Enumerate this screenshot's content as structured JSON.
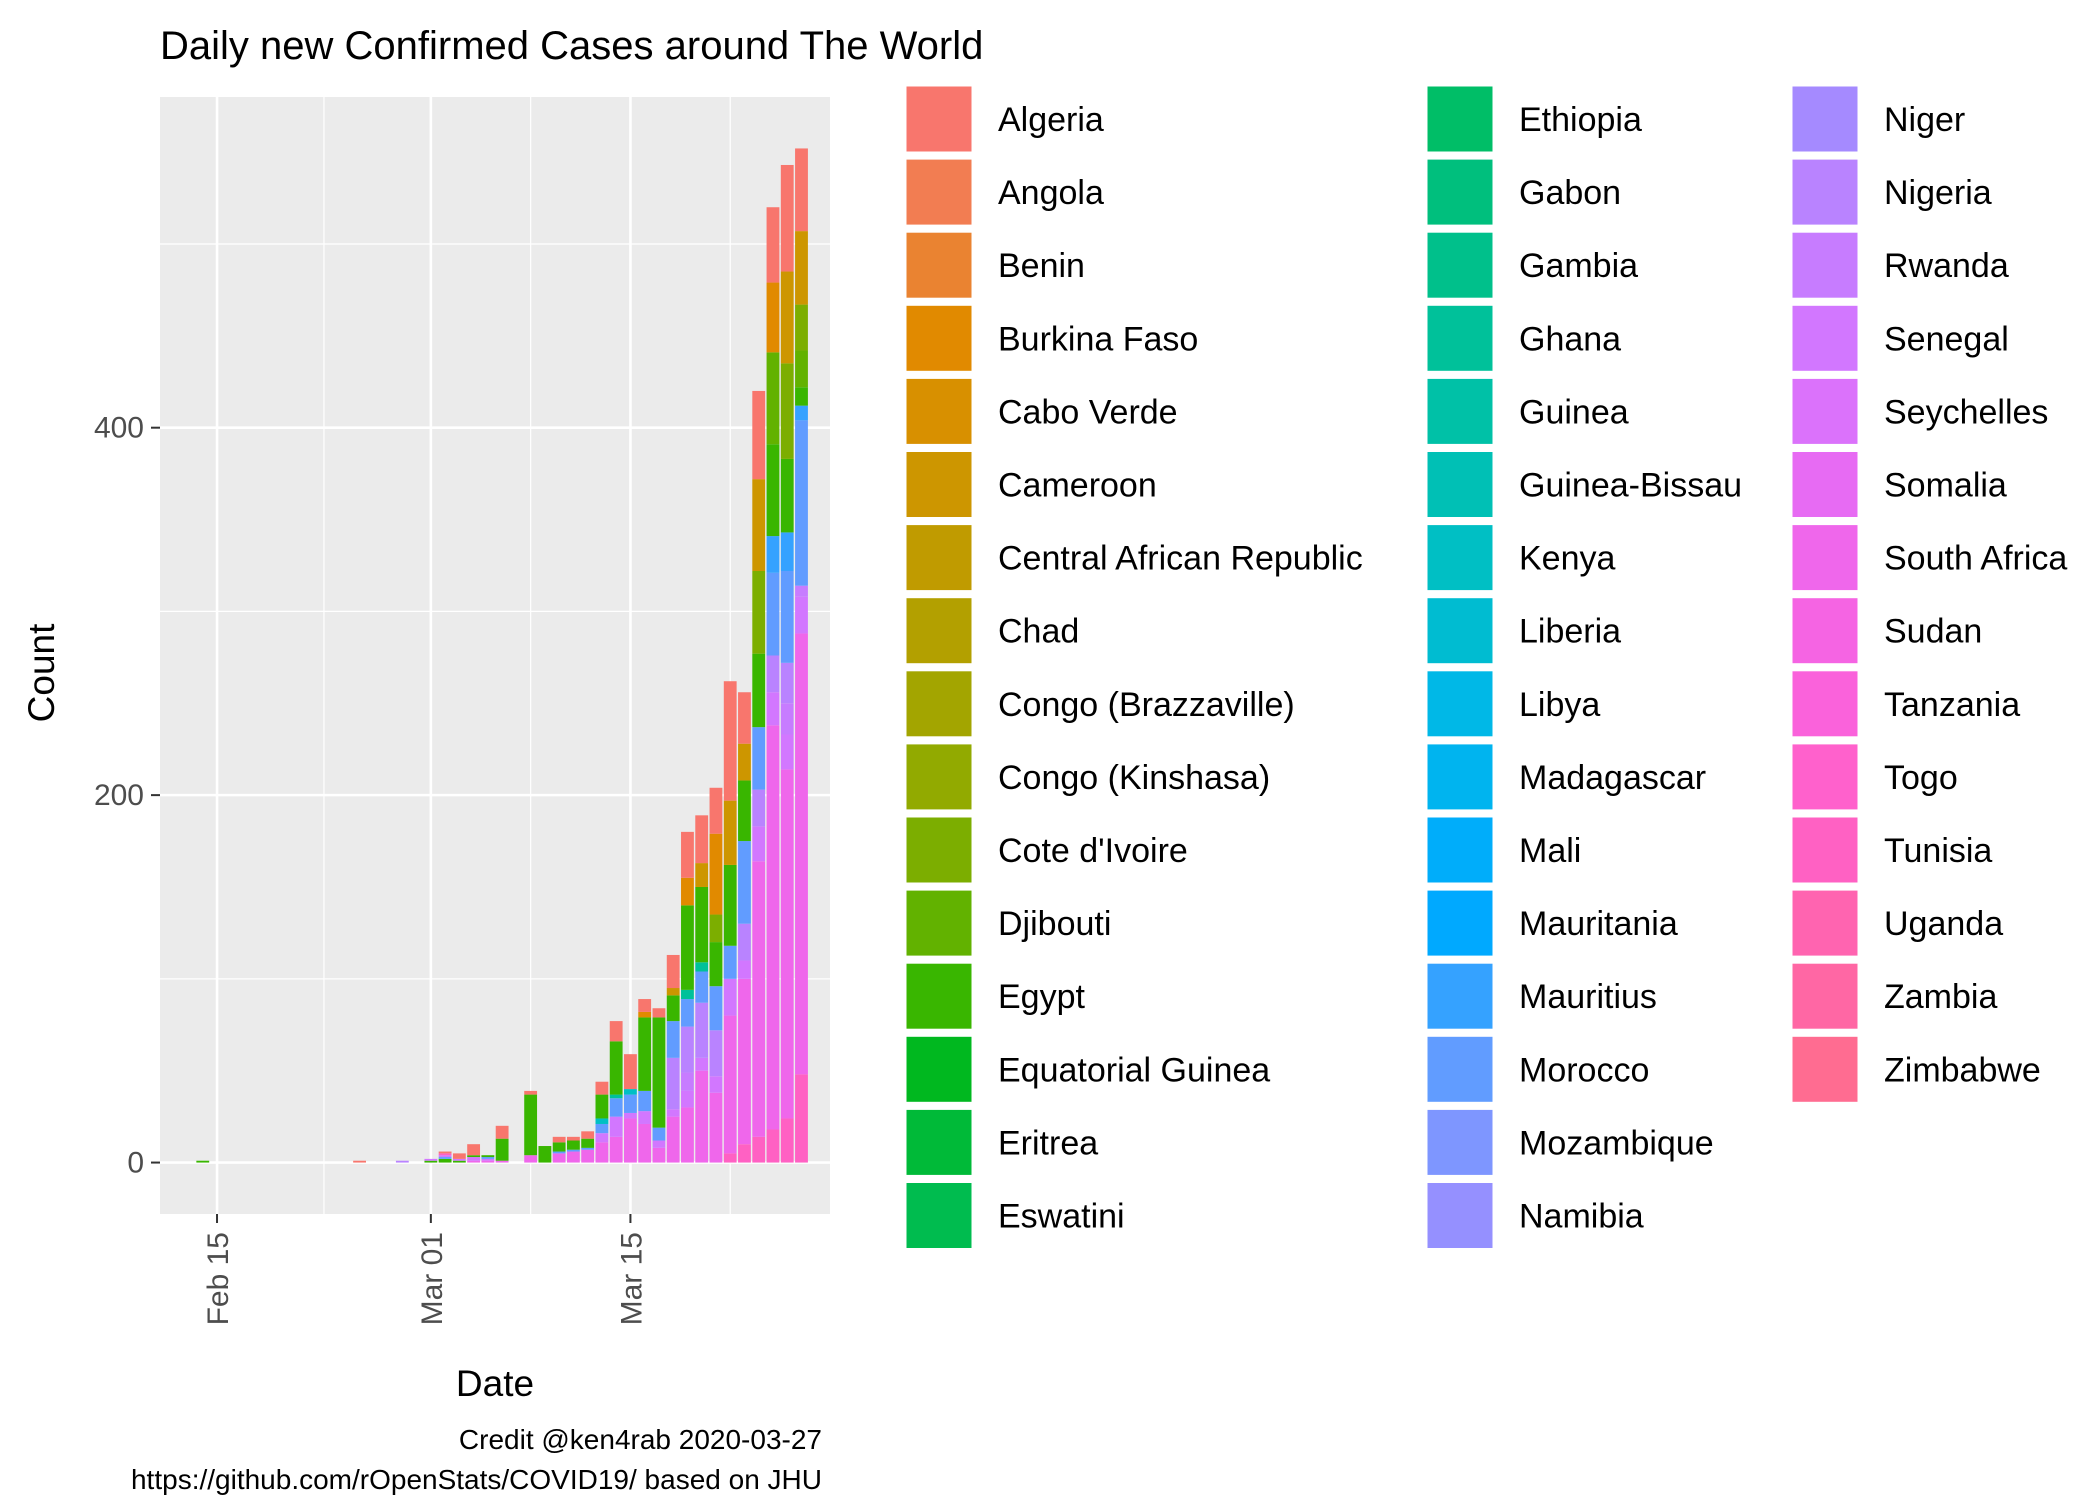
{
  "chart_data": {
    "type": "bar",
    "stacked": true,
    "title": "Daily new Confirmed Cases around The World",
    "xlabel": "Date",
    "ylabel": "Count",
    "x_tick_labels": [
      "Feb 15",
      "Mar 01",
      "Mar 15"
    ],
    "y_tick_labels": [
      "0",
      "200",
      "400"
    ],
    "ylim": [
      -28,
      580
    ],
    "x_range_days": [
      "2020-02-11",
      "2020-03-29"
    ],
    "grid": true,
    "legend_placement": "right",
    "caption": [
      "Credit @ken4rab 2020-03-27",
      "https://github.com/rOpenStats/COVID19/ based on JHU"
    ],
    "legend": [
      {
        "name": "Algeria",
        "color": "#F8766D"
      },
      {
        "name": "Angola",
        "color": "#F27D52"
      },
      {
        "name": "Benin",
        "color": "#EA8331"
      },
      {
        "name": "Burkina Faso",
        "color": "#E18A00"
      },
      {
        "name": "Cabo Verde",
        "color": "#D89000"
      },
      {
        "name": "Cameroon",
        "color": "#CD9600"
      },
      {
        "name": "Central African Republic",
        "color": "#C09B00"
      },
      {
        "name": "Chad",
        "color": "#B3A000"
      },
      {
        "name": "Congo (Brazzaville)",
        "color": "#A3A500"
      },
      {
        "name": "Congo (Kinshasa)",
        "color": "#92AA00"
      },
      {
        "name": "Cote d'Ivoire",
        "color": "#7CAE00"
      },
      {
        "name": "Djibouti",
        "color": "#62B200"
      },
      {
        "name": "Egypt",
        "color": "#39B600"
      },
      {
        "name": "Equatorial Guinea",
        "color": "#00B81F"
      },
      {
        "name": "Eritrea",
        "color": "#00BA38"
      },
      {
        "name": "Eswatini",
        "color": "#00BC4F"
      },
      {
        "name": "Ethiopia",
        "color": "#00BE67"
      },
      {
        "name": "Gabon",
        "color": "#00BF7D"
      },
      {
        "name": "Gambia",
        "color": "#00C08B"
      },
      {
        "name": "Ghana",
        "color": "#00C19A"
      },
      {
        "name": "Guinea",
        "color": "#00C1A7"
      },
      {
        "name": "Guinea-Bissau",
        "color": "#00C0B5"
      },
      {
        "name": "Kenya",
        "color": "#00BFC4"
      },
      {
        "name": "Liberia",
        "color": "#00BCD1"
      },
      {
        "name": "Libya",
        "color": "#00B8E7"
      },
      {
        "name": "Madagascar",
        "color": "#00B4EF"
      },
      {
        "name": "Mali",
        "color": "#00ADFA"
      },
      {
        "name": "Mauritania",
        "color": "#00A9FF"
      },
      {
        "name": "Mauritius",
        "color": "#35A2FF"
      },
      {
        "name": "Morocco",
        "color": "#619CFF"
      },
      {
        "name": "Mozambique",
        "color": "#7E96FF"
      },
      {
        "name": "Namibia",
        "color": "#9590FF"
      },
      {
        "name": "Niger",
        "color": "#A58AFF"
      },
      {
        "name": "Nigeria",
        "color": "#B983FF"
      },
      {
        "name": "Rwanda",
        "color": "#C77CFF"
      },
      {
        "name": "Senegal",
        "color": "#D277FF"
      },
      {
        "name": "Seychelles",
        "color": "#DB72FB"
      },
      {
        "name": "Somalia",
        "color": "#E76BF3"
      },
      {
        "name": "South Africa",
        "color": "#EF67EB"
      },
      {
        "name": "Sudan",
        "color": "#F564E3"
      },
      {
        "name": "Tanzania",
        "color": "#FA62DB"
      },
      {
        "name": "Togo",
        "color": "#FF61CC"
      },
      {
        "name": "Tunisia",
        "color": "#FF61C3"
      },
      {
        "name": "Uganda",
        "color": "#FF64B0"
      },
      {
        "name": "Zambia",
        "color": "#FF67A4"
      },
      {
        "name": "Zimbabwe",
        "color": "#FF6C91"
      }
    ],
    "bars": [
      {
        "date": "2020-02-14",
        "segments": [
          [
            "Egypt",
            1
          ]
        ]
      },
      {
        "date": "2020-02-25",
        "segments": [
          [
            "Algeria",
            1
          ]
        ]
      },
      {
        "date": "2020-02-28",
        "segments": [
          [
            "Nigeria",
            1
          ]
        ]
      },
      {
        "date": "2020-03-01",
        "segments": [
          [
            "Egypt",
            1
          ],
          [
            "Senegal",
            1
          ]
        ]
      },
      {
        "date": "2020-03-02",
        "segments": [
          [
            "Egypt",
            2
          ],
          [
            "Morocco",
            1
          ],
          [
            "Senegal",
            1
          ],
          [
            "Tunisia",
            1
          ],
          [
            "Algeria",
            1
          ]
        ]
      },
      {
        "date": "2020-03-03",
        "segments": [
          [
            "Egypt",
            1
          ],
          [
            "Senegal",
            1
          ],
          [
            "Algeria",
            3
          ]
        ]
      },
      {
        "date": "2020-03-04",
        "segments": [
          [
            "South Africa",
            1
          ],
          [
            "Senegal",
            2
          ],
          [
            "Egypt",
            1
          ],
          [
            "Algeria",
            6
          ]
        ]
      },
      {
        "date": "2020-03-05",
        "segments": [
          [
            "South Africa",
            1
          ],
          [
            "Senegal",
            1
          ],
          [
            "Morocco",
            1
          ],
          [
            "Egypt",
            1
          ]
        ]
      },
      {
        "date": "2020-03-06",
        "segments": [
          [
            "South Africa",
            1
          ],
          [
            "Egypt",
            12
          ],
          [
            "Algeria",
            7
          ]
        ]
      },
      {
        "date": "2020-03-08",
        "segments": [
          [
            "South Africa",
            4
          ],
          [
            "Egypt",
            33
          ],
          [
            "Algeria",
            2
          ]
        ]
      },
      {
        "date": "2020-03-09",
        "segments": [
          [
            "Egypt",
            9
          ]
        ]
      },
      {
        "date": "2020-03-10",
        "segments": [
          [
            "South Africa",
            5
          ],
          [
            "Morocco",
            1
          ],
          [
            "Egypt",
            5
          ],
          [
            "Algeria",
            3
          ]
        ]
      },
      {
        "date": "2020-03-11",
        "segments": [
          [
            "South Africa",
            6
          ],
          [
            "Morocco",
            1
          ],
          [
            "Egypt",
            5
          ],
          [
            "Algeria",
            2
          ]
        ]
      },
      {
        "date": "2020-03-12",
        "segments": [
          [
            "South Africa",
            7
          ],
          [
            "Morocco",
            1
          ],
          [
            "Egypt",
            5
          ],
          [
            "Algeria",
            4
          ]
        ]
      },
      {
        "date": "2020-03-13",
        "segments": [
          [
            "South Africa",
            11
          ],
          [
            "Senegal",
            5
          ],
          [
            "Morocco",
            5
          ],
          [
            "Kenya",
            3
          ],
          [
            "Egypt",
            13
          ],
          [
            "Algeria",
            7
          ]
        ]
      },
      {
        "date": "2020-03-14",
        "segments": [
          [
            "South Africa",
            14
          ],
          [
            "Senegal",
            11
          ],
          [
            "Morocco",
            10
          ],
          [
            "Ghana",
            2
          ],
          [
            "Egypt",
            29
          ],
          [
            "Algeria",
            11
          ]
        ]
      },
      {
        "date": "2020-03-15",
        "segments": [
          [
            "South Africa",
            24
          ],
          [
            "Senegal",
            3
          ],
          [
            "Morocco",
            10
          ],
          [
            "Kenya",
            3
          ],
          [
            "Egypt",
            0
          ],
          [
            "Algeria",
            19
          ]
        ]
      },
      {
        "date": "2020-03-16",
        "segments": [
          [
            "South Africa",
            21
          ],
          [
            "Senegal",
            7
          ],
          [
            "Morocco",
            11
          ],
          [
            "Egypt",
            40
          ],
          [
            "Burkina Faso",
            3
          ],
          [
            "Algeria",
            7
          ]
        ]
      },
      {
        "date": "2020-03-17",
        "segments": [
          [
            "South Africa",
            8
          ],
          [
            "Senegal",
            4
          ],
          [
            "Morocco",
            7
          ],
          [
            "Egypt",
            60
          ],
          [
            "Algeria",
            5
          ]
        ]
      },
      {
        "date": "2020-03-18",
        "segments": [
          [
            "South Africa",
            25
          ],
          [
            "Senegal",
            4
          ],
          [
            "Nigeria",
            28
          ],
          [
            "Morocco",
            20
          ],
          [
            "Egypt",
            14
          ],
          [
            "Cameroon",
            4
          ],
          [
            "Algeria",
            18
          ]
        ]
      },
      {
        "date": "2020-03-19",
        "segments": [
          [
            "South Africa",
            30
          ],
          [
            "Senegal",
            9
          ],
          [
            "Rwanda",
            10
          ],
          [
            "Nigeria",
            25
          ],
          [
            "Morocco",
            15
          ],
          [
            "Ghana",
            5
          ],
          [
            "Egypt",
            46
          ],
          [
            "Burkina Faso",
            15
          ],
          [
            "Algeria",
            25
          ]
        ]
      },
      {
        "date": "2020-03-20",
        "segments": [
          [
            "South Africa",
            50
          ],
          [
            "Senegal",
            7
          ],
          [
            "Nigeria",
            30
          ],
          [
            "Morocco",
            17
          ],
          [
            "Ghana",
            5
          ],
          [
            "Egypt",
            41
          ],
          [
            "Cameroon",
            13
          ],
          [
            "Algeria",
            26
          ]
        ]
      },
      {
        "date": "2020-03-21",
        "segments": [
          [
            "South Africa",
            38
          ],
          [
            "Senegal",
            9
          ],
          [
            "Nigeria",
            25
          ],
          [
            "Morocco",
            24
          ],
          [
            "Egypt",
            24
          ],
          [
            "Cote d'Ivoire",
            15
          ],
          [
            "Burkina Faso",
            44
          ],
          [
            "Algeria",
            25
          ]
        ]
      },
      {
        "date": "2020-03-22",
        "segments": [
          [
            "Tunisia",
            5
          ],
          [
            "South Africa",
            75
          ],
          [
            "Senegal",
            20
          ],
          [
            "Morocco",
            18
          ],
          [
            "Egypt",
            44
          ],
          [
            "Cameroon",
            35
          ],
          [
            "Algeria",
            65
          ]
        ]
      },
      {
        "date": "2020-03-23",
        "segments": [
          [
            "Tunisia",
            10
          ],
          [
            "South Africa",
            90
          ],
          [
            "Senegal",
            10
          ],
          [
            "Nigeria",
            20
          ],
          [
            "Morocco",
            45
          ],
          [
            "Egypt",
            33
          ],
          [
            "Cameroon",
            20
          ],
          [
            "Algeria",
            28
          ]
        ]
      },
      {
        "date": "2020-03-24",
        "segments": [
          [
            "Tunisia",
            14
          ],
          [
            "South Africa",
            150
          ],
          [
            "Senegal",
            19
          ],
          [
            "Nigeria",
            20
          ],
          [
            "Morocco",
            34
          ],
          [
            "Egypt",
            40
          ],
          [
            "Cote d'Ivoire",
            45
          ],
          [
            "Cameroon",
            50
          ],
          [
            "Algeria",
            48
          ]
        ]
      },
      {
        "date": "2020-03-25",
        "segments": [
          [
            "Tunisia",
            18
          ],
          [
            "South Africa",
            220
          ],
          [
            "Senegal",
            18
          ],
          [
            "Nigeria",
            20
          ],
          [
            "Morocco",
            45
          ],
          [
            "Mauritius",
            20
          ],
          [
            "Egypt",
            50
          ],
          [
            "Djibouti",
            50
          ],
          [
            "Burkina Faso",
            38
          ],
          [
            "Algeria",
            41
          ]
        ]
      },
      {
        "date": "2020-03-26",
        "segments": [
          [
            "Tunisia",
            24
          ],
          [
            "South Africa",
            190
          ],
          [
            "Senegal",
            19
          ],
          [
            "Rwanda",
            17
          ],
          [
            "Nigeria",
            22
          ],
          [
            "Morocco",
            50
          ],
          [
            "Mauritius",
            21
          ],
          [
            "Egypt",
            40
          ],
          [
            "Cote d'Ivoire",
            52
          ],
          [
            "Cameroon",
            50
          ],
          [
            "Algeria",
            58
          ]
        ]
      },
      {
        "date": "2020-03-27",
        "segments": [
          [
            "Tunisia",
            48
          ],
          [
            "South Africa",
            240
          ],
          [
            "Senegal",
            20
          ],
          [
            "Rwanda",
            6
          ],
          [
            "Morocco",
            90
          ],
          [
            "Mauritius",
            8
          ],
          [
            "Egypt",
            10
          ],
          [
            "Djibouti",
            20
          ],
          [
            "Cote d'Ivoire",
            25
          ],
          [
            "Cameroon",
            40
          ],
          [
            "Algeria",
            45
          ]
        ]
      }
    ]
  }
}
